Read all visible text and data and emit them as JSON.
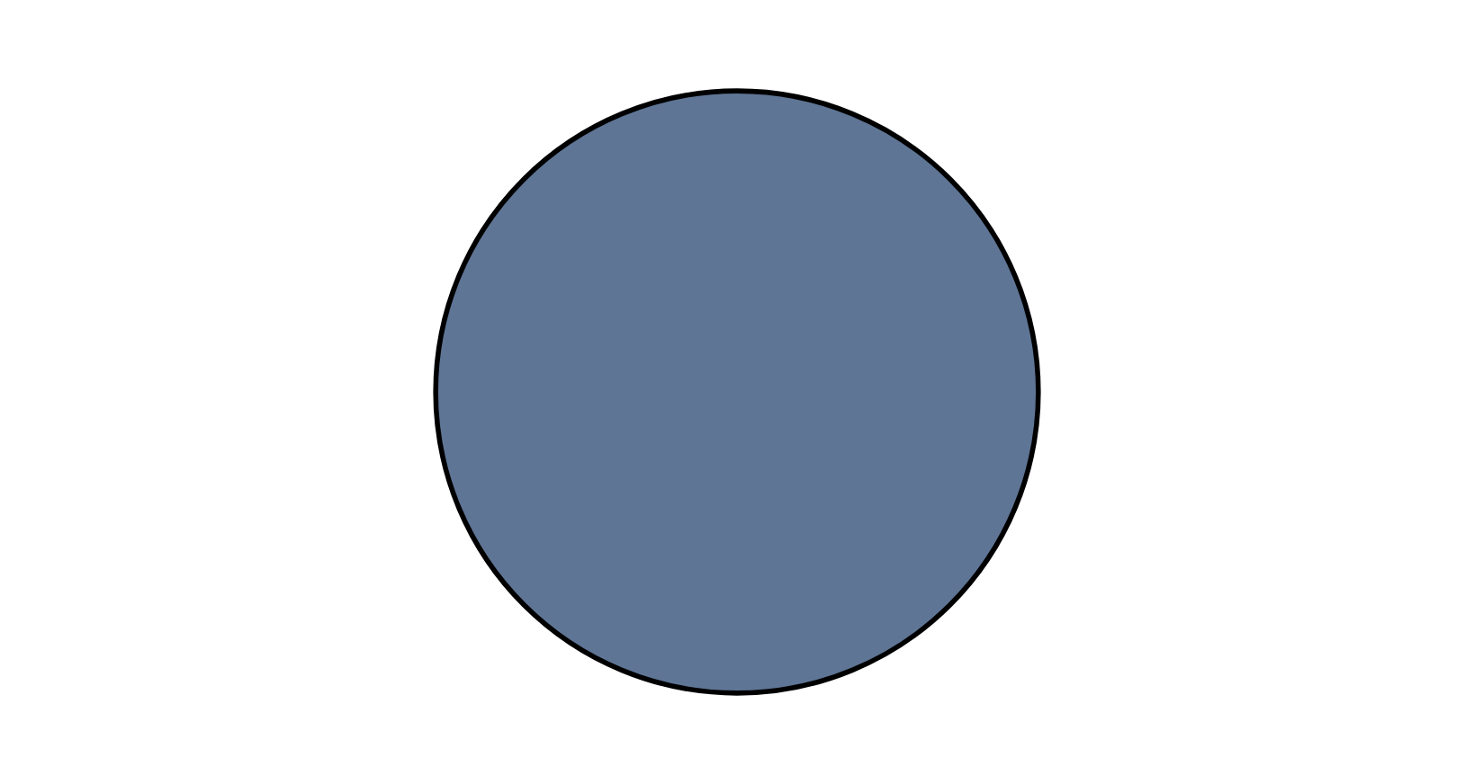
{
  "chart_data": {
    "type": "pie",
    "categories": [
      null
    ],
    "values": [
      100
    ],
    "colors": [
      "#5f7595"
    ]
  }
}
